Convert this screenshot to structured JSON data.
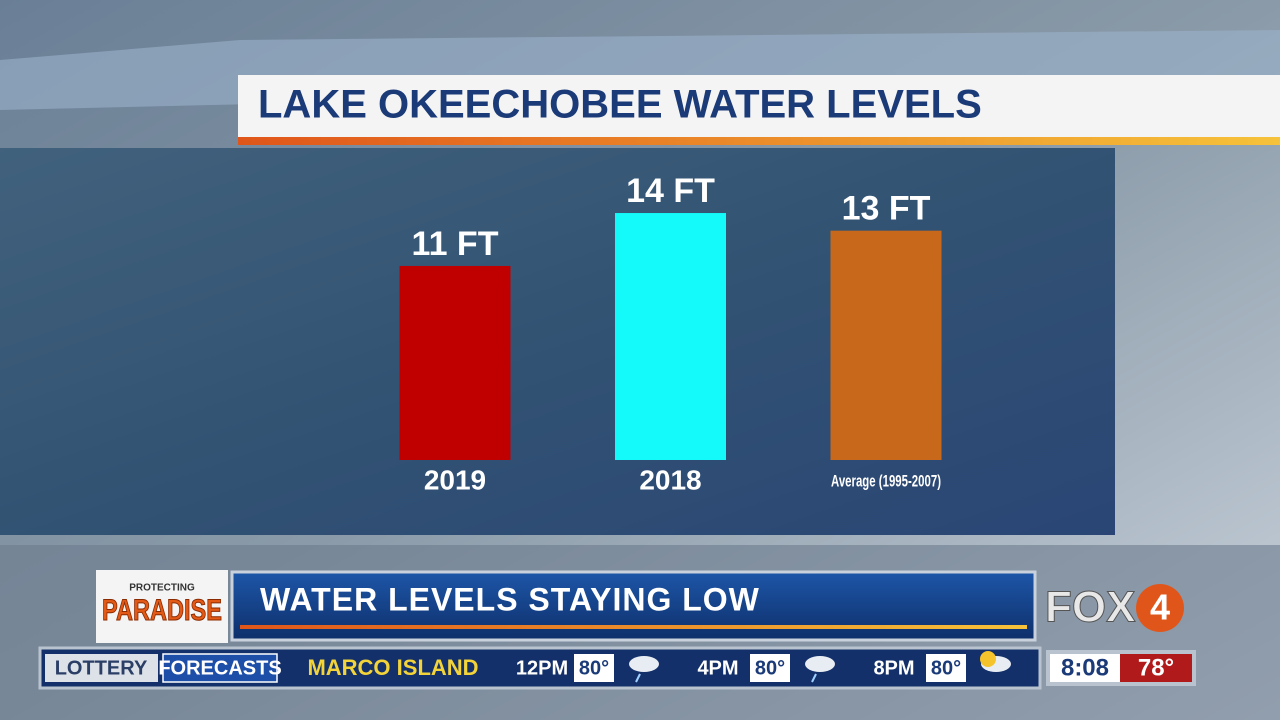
{
  "chart_data": {
    "type": "bar",
    "title": "LAKE OKEECHOBEE WATER LEVELS",
    "categories": [
      "2019",
      "2018",
      "Average (1995-2007)"
    ],
    "values": [
      11,
      14,
      13
    ],
    "value_labels": [
      "11 FT",
      "14 FT",
      "13 FT"
    ],
    "colors": [
      "#c00000",
      "#14fafa",
      "#c8681a"
    ]
  },
  "lower_third": {
    "logo_top": "PROTECTING",
    "logo_main": "PARADISE",
    "headline": "WATER LEVELS STAYING LOW",
    "station": "FOX",
    "station_number": "4"
  },
  "ticker": {
    "tabs": [
      "LOTTERY",
      "FORECASTS"
    ],
    "location": "MARCO ISLAND",
    "forecast": [
      {
        "time": "12PM",
        "temp": "80°"
      },
      {
        "time": "4PM",
        "temp": "80°"
      },
      {
        "time": "8PM",
        "temp": "80°"
      }
    ],
    "clock": "8:08",
    "current_temp": "78°"
  }
}
